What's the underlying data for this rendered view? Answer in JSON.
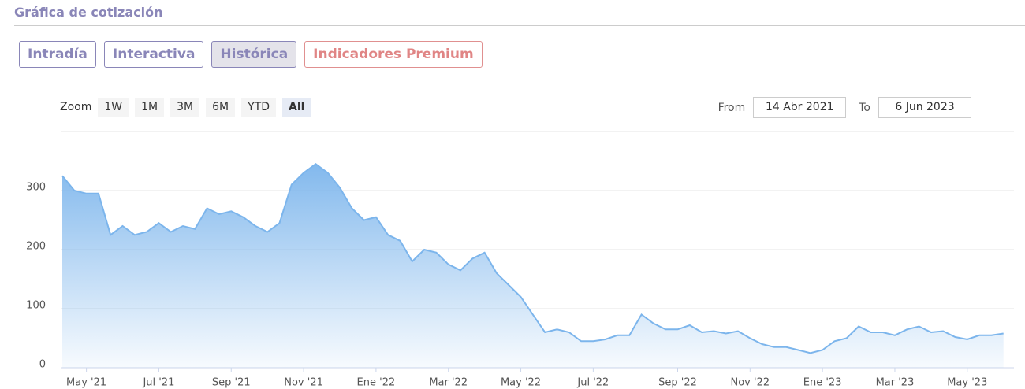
{
  "header": {
    "title": "Gráfica de cotización"
  },
  "tabs": [
    "Intradía",
    "Interactiva",
    "Histórica",
    "Indicadores Premium"
  ],
  "zoom": {
    "label": "Zoom",
    "buttons": [
      "1W",
      "1M",
      "3M",
      "6M",
      "YTD",
      "All"
    ]
  },
  "range": {
    "from_label": "From",
    "from": "14 Abr 2021",
    "to_label": "To",
    "to": "6 Jun 2023"
  },
  "chart_data": {
    "type": "area",
    "color": "#7cb5ec",
    "categories": [
      null,
      null,
      "May '21",
      null,
      null,
      null,
      null,
      null,
      "Jul '21",
      null,
      null,
      null,
      null,
      null,
      "Sep '21",
      null,
      null,
      null,
      null,
      null,
      "Nov '21",
      null,
      null,
      null,
      null,
      null,
      "Ene '22",
      null,
      null,
      null,
      null,
      null,
      "Mar '22",
      null,
      null,
      null,
      null,
      null,
      "May '22",
      null,
      null,
      null,
      null,
      null,
      "Jul '22",
      null,
      null,
      null,
      null,
      null,
      null,
      "Sep '22",
      null,
      null,
      null,
      null,
      null,
      "Nov '22",
      null,
      null,
      null,
      null,
      null,
      "Ene '23",
      null,
      null,
      null,
      null,
      null,
      "Mar '23",
      null,
      null,
      null,
      null,
      null,
      "May '23",
      null,
      null,
      null
    ],
    "values": [
      325,
      300,
      295,
      295,
      225,
      240,
      225,
      230,
      245,
      230,
      240,
      235,
      270,
      260,
      265,
      255,
      240,
      230,
      245,
      310,
      330,
      345,
      330,
      305,
      270,
      250,
      255,
      225,
      215,
      180,
      200,
      195,
      175,
      165,
      185,
      195,
      160,
      140,
      120,
      90,
      60,
      65,
      60,
      45,
      45,
      48,
      55,
      55,
      90,
      75,
      65,
      65,
      72,
      60,
      62,
      58,
      62,
      50,
      40,
      35,
      35,
      30,
      25,
      30,
      45,
      50,
      70,
      60,
      60,
      55,
      65,
      70,
      60,
      62,
      52,
      48,
      55,
      55,
      58
    ],
    "ylim": [
      0,
      400
    ],
    "yticks": [
      0,
      100,
      200,
      300
    ],
    "grid": true
  }
}
